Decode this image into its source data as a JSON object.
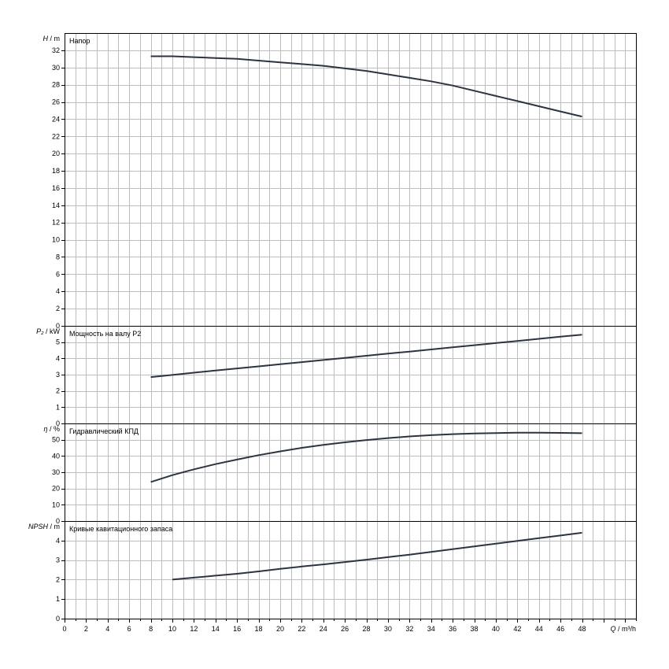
{
  "chart_data": [
    {
      "type": "line",
      "title": "Напор",
      "ylabel_main": "H",
      "ylabel_unit": " / m",
      "ylim": [
        0,
        34
      ],
      "yticks": [
        "0",
        "2",
        "4",
        "6",
        "8",
        "10",
        "12",
        "14",
        "16",
        "18",
        "20",
        "22",
        "24",
        "26",
        "28",
        "30",
        "32"
      ],
      "series": [
        {
          "x": [
            8,
            10,
            12,
            14,
            16,
            18,
            20,
            22,
            24,
            26,
            28,
            30,
            32,
            34,
            36,
            38,
            40,
            42,
            44,
            46,
            48
          ],
          "y": [
            31.3,
            31.3,
            31.2,
            31.1,
            31.0,
            30.8,
            30.6,
            30.4,
            30.2,
            29.9,
            29.6,
            29.2,
            28.8,
            28.4,
            27.9,
            27.3,
            26.7,
            26.1,
            25.5,
            24.9,
            24.3
          ]
        }
      ]
    },
    {
      "type": "line",
      "title": "Мощность на валу P2",
      "ylabel_main": "P₂",
      "ylabel_unit": " / kW",
      "ylim": [
        0,
        6
      ],
      "yticks": [
        "0",
        "1",
        "2",
        "3",
        "4",
        "5"
      ],
      "series": [
        {
          "x": [
            8,
            10,
            12,
            14,
            16,
            18,
            20,
            22,
            24,
            26,
            28,
            30,
            32,
            34,
            36,
            38,
            40,
            42,
            44,
            46,
            48
          ],
          "y": [
            2.85,
            2.98,
            3.12,
            3.25,
            3.38,
            3.51,
            3.64,
            3.77,
            3.9,
            4.03,
            4.16,
            4.29,
            4.42,
            4.55,
            4.68,
            4.81,
            4.94,
            5.07,
            5.2,
            5.33,
            5.46
          ]
        }
      ]
    },
    {
      "type": "line",
      "title": "Гидравлический КПД",
      "ylabel_main": "η",
      "ylabel_unit": " / %",
      "ylim": [
        0,
        60
      ],
      "yticks": [
        "0",
        "10",
        "20",
        "30",
        "40",
        "50"
      ],
      "series": [
        {
          "x": [
            8,
            10,
            12,
            14,
            16,
            18,
            20,
            22,
            24,
            26,
            28,
            30,
            32,
            34,
            36,
            38,
            40,
            42,
            44,
            46,
            48
          ],
          "y": [
            24,
            28.2,
            31.8,
            35,
            37.8,
            40.5,
            42.8,
            45,
            46.8,
            48.4,
            49.8,
            51,
            52,
            52.8,
            53.4,
            53.8,
            54.1,
            54.3,
            54.3,
            54.2,
            54
          ]
        }
      ]
    },
    {
      "type": "line",
      "title": "Кривые кавитационного запаса",
      "ylabel_main": "NPSH",
      "ylabel_unit": " / m",
      "ylim": [
        0,
        5
      ],
      "yticks": [
        "0",
        "1",
        "2",
        "3",
        "4"
      ],
      "series": [
        {
          "x": [
            10,
            12,
            14,
            16,
            18,
            20,
            22,
            24,
            26,
            28,
            30,
            32,
            34,
            36,
            38,
            40,
            42,
            44,
            46,
            48
          ],
          "y": [
            2.0,
            2.1,
            2.2,
            2.3,
            2.42,
            2.55,
            2.67,
            2.78,
            2.9,
            3.02,
            3.15,
            3.28,
            3.42,
            3.56,
            3.7,
            3.84,
            3.98,
            4.12,
            4.26,
            4.4
          ]
        }
      ]
    }
  ],
  "x_axis": {
    "xlim": [
      0,
      53
    ],
    "ticks": [
      "0",
      "2",
      "4",
      "6",
      "8",
      "10",
      "12",
      "14",
      "16",
      "18",
      "20",
      "22",
      "24",
      "26",
      "28",
      "30",
      "32",
      "34",
      "36",
      "38",
      "40",
      "42",
      "44",
      "46",
      "48"
    ],
    "label_main": "Q",
    "label_unit": " / m³/h"
  },
  "colors": {
    "curve": "#2c3440",
    "grid": "#bdbdbd",
    "frame": "#000000"
  }
}
